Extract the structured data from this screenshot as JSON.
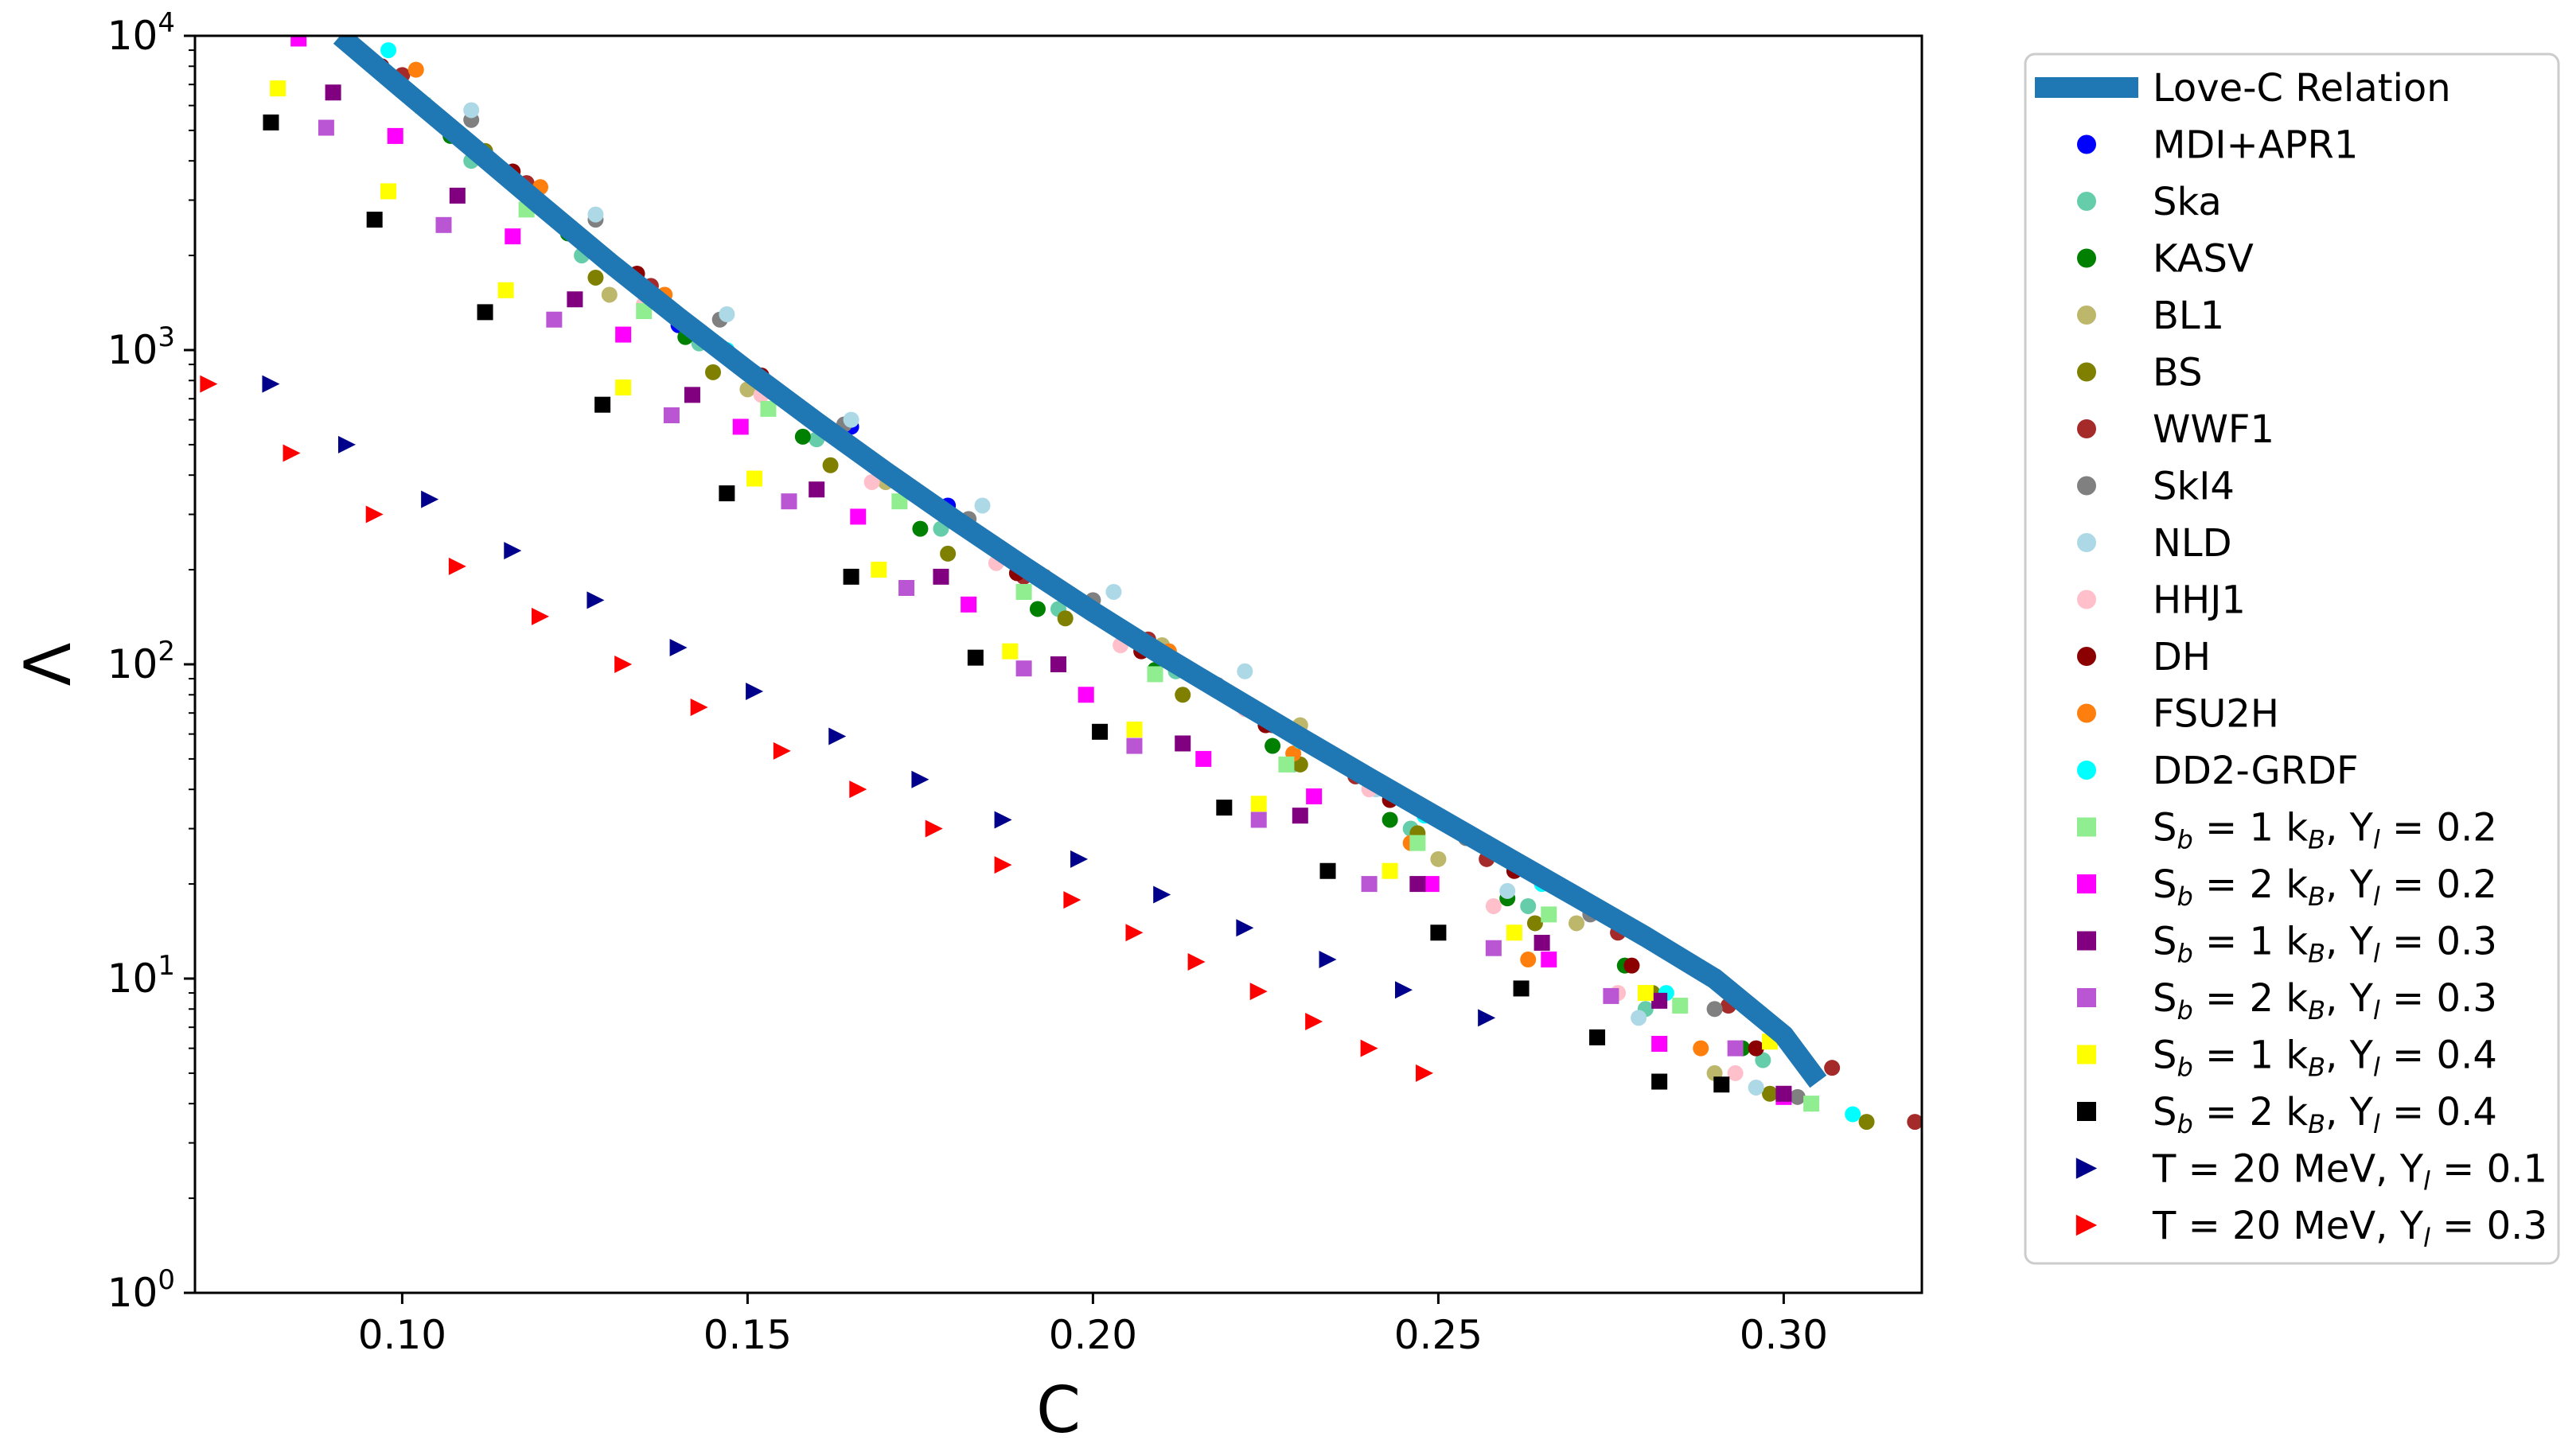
{
  "chart_data": {
    "type": "scatter",
    "xlabel": "C",
    "ylabel": "Λ",
    "xlim": [
      0.07,
      0.32
    ],
    "ylim": [
      1,
      10000
    ],
    "yscale": "log",
    "grid": false,
    "legend_position": "right (outside)",
    "x_ticks": [
      0.1,
      0.15,
      0.2,
      0.25,
      0.3
    ],
    "x_tick_labels": [
      "0.10",
      "0.15",
      "0.20",
      "0.25",
      "0.30"
    ],
    "y_ticks": [
      1,
      10,
      100,
      1000,
      10000
    ],
    "y_tick_labels": [
      {
        "base": "10",
        "exp": "0"
      },
      {
        "base": "10",
        "exp": "1"
      },
      {
        "base": "10",
        "exp": "2"
      },
      {
        "base": "10",
        "exp": "3"
      },
      {
        "base": "10",
        "exp": "4"
      }
    ],
    "line": {
      "name": "Love-C Relation",
      "color": "#1f77b4",
      "x": [
        0.091,
        0.1,
        0.11,
        0.12,
        0.13,
        0.14,
        0.15,
        0.16,
        0.17,
        0.18,
        0.19,
        0.2,
        0.21,
        0.22,
        0.23,
        0.24,
        0.25,
        0.26,
        0.27,
        0.28,
        0.29,
        0.3,
        0.305
      ],
      "y": [
        10000,
        6800,
        4450,
        2900,
        1900,
        1270,
        860,
        590,
        410,
        288,
        205,
        147,
        107,
        79,
        58.5,
        43.5,
        32.5,
        24.3,
        18.2,
        13.6,
        10.0,
        6.6,
        4.7
      ]
    },
    "series": [
      {
        "name": "MDI+APR1",
        "marker": "circle",
        "color": "#0000ff",
        "x": [
          0.14,
          0.165,
          0.179
        ],
        "y": [
          1200,
          570,
          320
        ]
      },
      {
        "name": "Ska",
        "marker": "circle",
        "color": "#66cdaa",
        "x": [
          0.11,
          0.126,
          0.143,
          0.16,
          0.178,
          0.195,
          0.212,
          0.229,
          0.246,
          0.263,
          0.28,
          0.297
        ],
        "y": [
          4000,
          2000,
          1050,
          520,
          270,
          150,
          95,
          48,
          30,
          17,
          8,
          5.5
        ]
      },
      {
        "name": "KASV",
        "marker": "circle",
        "color": "#008000",
        "x": [
          0.107,
          0.124,
          0.141,
          0.158,
          0.175,
          0.192,
          0.209,
          0.226,
          0.243,
          0.26,
          0.277,
          0.294
        ],
        "y": [
          4800,
          2350,
          1100,
          530,
          270,
          150,
          96,
          55,
          32,
          18,
          11,
          6
        ]
      },
      {
        "name": "BL1",
        "marker": "circle",
        "color": "#bdb76b",
        "x": [
          0.13,
          0.15,
          0.17,
          0.19,
          0.21,
          0.23,
          0.25,
          0.27,
          0.29
        ],
        "y": [
          1500,
          750,
          380,
          205,
          115,
          64,
          24,
          15,
          5
        ]
      },
      {
        "name": "BS",
        "marker": "circle",
        "color": "#808000",
        "x": [
          0.096,
          0.112,
          0.128,
          0.145,
          0.162,
          0.179,
          0.196,
          0.213,
          0.23,
          0.247,
          0.264,
          0.281,
          0.298,
          0.312
        ],
        "y": [
          8000,
          4300,
          1700,
          850,
          430,
          225,
          140,
          80,
          48,
          29,
          15,
          9,
          4.3,
          3.5
        ]
      },
      {
        "name": "WWF1",
        "marker": "circle",
        "color": "#a52a2a",
        "x": [
          0.1,
          0.118,
          0.136,
          0.153,
          0.172,
          0.19,
          0.208,
          0.226,
          0.238,
          0.257,
          0.276,
          0.292,
          0.307,
          0.319
        ],
        "y": [
          7500,
          3400,
          1600,
          740,
          380,
          190,
          120,
          64,
          44,
          24,
          14,
          8.2,
          5.2,
          3.5
        ]
      },
      {
        "name": "SkI4",
        "marker": "circle",
        "color": "#808080",
        "x": [
          0.11,
          0.128,
          0.146,
          0.164,
          0.182,
          0.2,
          0.218,
          0.236,
          0.254,
          0.272,
          0.29,
          0.302
        ],
        "y": [
          5400,
          2600,
          1250,
          580,
          290,
          160,
          86,
          50,
          28,
          16,
          8,
          4.2
        ]
      },
      {
        "name": "NLD",
        "marker": "circle",
        "color": "#add8e6",
        "x": [
          0.11,
          0.128,
          0.147,
          0.165,
          0.184,
          0.203,
          0.222,
          0.241,
          0.26,
          0.279,
          0.296
        ],
        "y": [
          5800,
          2700,
          1300,
          600,
          320,
          170,
          95,
          40,
          19,
          7.5,
          4.5
        ]
      },
      {
        "name": "HHJ1",
        "marker": "circle",
        "color": "#ffc0cb",
        "x": [
          0.135,
          0.152,
          0.168,
          0.186,
          0.204,
          0.222,
          0.24,
          0.258,
          0.276,
          0.293
        ],
        "y": [
          1400,
          720,
          380,
          210,
          115,
          72,
          40,
          17,
          9,
          5
        ]
      },
      {
        "name": "DH",
        "marker": "circle",
        "color": "#8b0000",
        "x": [
          0.097,
          0.116,
          0.134,
          0.152,
          0.171,
          0.189,
          0.207,
          0.225,
          0.243,
          0.261,
          0.278,
          0.296
        ],
        "y": [
          8000,
          3700,
          1750,
          830,
          390,
          195,
          110,
          64,
          37,
          22,
          11,
          6
        ]
      },
      {
        "name": "FSU2H",
        "marker": "circle",
        "color": "#ff7f0e",
        "x": [
          0.102,
          0.12,
          0.138,
          0.156,
          0.175,
          0.193,
          0.211,
          0.229,
          0.246,
          0.263,
          0.288
        ],
        "y": [
          7800,
          3300,
          1500,
          700,
          350,
          190,
          110,
          52,
          27,
          11.5,
          6
        ]
      },
      {
        "name": "DD2-GRDF",
        "marker": "circle",
        "color": "#00ffff",
        "x": [
          0.098,
          0.147,
          0.23,
          0.248,
          0.265,
          0.283,
          0.31
        ],
        "y": [
          9000,
          1000,
          57,
          33,
          20,
          9,
          3.7
        ]
      },
      {
        "name": "S_b = 1 k_B, Y_l = 0.2",
        "marker": "square",
        "color": "#90ee90",
        "x": [
          0.103,
          0.118,
          0.135,
          0.153,
          0.172,
          0.19,
          0.209,
          0.228,
          0.247,
          0.266,
          0.285,
          0.304
        ],
        "y": [
          6000,
          2800,
          1330,
          650,
          330,
          170,
          93,
          48,
          27,
          16,
          8.2,
          4
        ]
      },
      {
        "name": "S_b = 2 k_B, Y_l = 0.2",
        "marker": "square",
        "color": "#ff00ff",
        "x": [
          0.085,
          0.099,
          0.116,
          0.132,
          0.149,
          0.166,
          0.182,
          0.199,
          0.216,
          0.232,
          0.249,
          0.266,
          0.282,
          0.3
        ],
        "y": [
          9800,
          4800,
          2300,
          1120,
          570,
          295,
          155,
          80,
          50,
          38,
          20,
          11.5,
          6.2,
          4.2
        ]
      },
      {
        "name": "S_b = 1 k_B, Y_l = 0.3",
        "marker": "square",
        "color": "#800080",
        "x": [
          0.09,
          0.108,
          0.125,
          0.142,
          0.16,
          0.178,
          0.195,
          0.213,
          0.23,
          0.247,
          0.265,
          0.282,
          0.3
        ],
        "y": [
          6600,
          3100,
          1450,
          720,
          360,
          190,
          100,
          56,
          33,
          20,
          13,
          8.5,
          4.3
        ]
      },
      {
        "name": "S_b = 2 k_B, Y_l = 0.3",
        "marker": "square",
        "color": "#ba55d3",
        "x": [
          0.089,
          0.106,
          0.122,
          0.139,
          0.156,
          0.173,
          0.19,
          0.206,
          0.224,
          0.24,
          0.258,
          0.275,
          0.293
        ],
        "y": [
          5100,
          2500,
          1250,
          620,
          330,
          175,
          97,
          55,
          32,
          20,
          12.5,
          8.8,
          6
        ]
      },
      {
        "name": "S_b = 1 k_B, Y_l = 0.4",
        "marker": "square",
        "color": "#ffff00",
        "x": [
          0.082,
          0.098,
          0.115,
          0.132,
          0.151,
          0.169,
          0.188,
          0.206,
          0.224,
          0.243,
          0.261,
          0.28,
          0.298
        ],
        "y": [
          6800,
          3200,
          1550,
          760,
          390,
          200,
          110,
          62,
          36,
          22,
          14,
          9,
          6.3
        ]
      },
      {
        "name": "S_b = 2 k_B, Y_l = 0.4",
        "marker": "square",
        "color": "#000000",
        "x": [
          0.081,
          0.096,
          0.112,
          0.129,
          0.147,
          0.165,
          0.183,
          0.201,
          0.219,
          0.234,
          0.25,
          0.262,
          0.273,
          0.282,
          0.291
        ],
        "y": [
          5300,
          2600,
          1320,
          670,
          350,
          190,
          105,
          61,
          35,
          22,
          14,
          9.3,
          6.5,
          4.7,
          4.6
        ]
      },
      {
        "name": "T = 20 MeV, Y_l = 0.1",
        "marker": "triangle-right",
        "color": "#00008b",
        "x": [
          0.081,
          0.092,
          0.104,
          0.116,
          0.128,
          0.14,
          0.151,
          0.163,
          0.175,
          0.187,
          0.198,
          0.21,
          0.222,
          0.234,
          0.245,
          0.257
        ],
        "y": [
          780,
          500,
          335,
          230,
          160,
          113,
          82,
          59,
          43,
          32,
          24,
          18.5,
          14.5,
          11.5,
          9.2,
          7.5
        ]
      },
      {
        "name": "T = 20 MeV, Y_l = 0.3",
        "marker": "triangle-right",
        "color": "#ff0000",
        "x": [
          0.072,
          0.084,
          0.096,
          0.108,
          0.12,
          0.132,
          0.143,
          0.155,
          0.166,
          0.177,
          0.187,
          0.197,
          0.206,
          0.215,
          0.224,
          0.232,
          0.24,
          0.248
        ],
        "y": [
          780,
          470,
          300,
          205,
          142,
          100,
          73,
          53,
          40,
          30,
          23,
          17.8,
          14,
          11.3,
          9.1,
          7.3,
          6,
          5
        ]
      }
    ],
    "legend": [
      {
        "kind": "line",
        "color": "#1f77b4",
        "text": "Love-C Relation"
      },
      {
        "kind": "circle",
        "color": "#0000ff",
        "text": "MDI+APR1"
      },
      {
        "kind": "circle",
        "color": "#66cdaa",
        "text": "Ska"
      },
      {
        "kind": "circle",
        "color": "#008000",
        "text": "KASV"
      },
      {
        "kind": "circle",
        "color": "#bdb76b",
        "text": "BL1"
      },
      {
        "kind": "circle",
        "color": "#808000",
        "text": "BS"
      },
      {
        "kind": "circle",
        "color": "#a52a2a",
        "text": "WWF1"
      },
      {
        "kind": "circle",
        "color": "#808080",
        "text": "SkI4"
      },
      {
        "kind": "circle",
        "color": "#add8e6",
        "text": "NLD"
      },
      {
        "kind": "circle",
        "color": "#ffc0cb",
        "text": "HHJ1"
      },
      {
        "kind": "circle",
        "color": "#8b0000",
        "text": "DH"
      },
      {
        "kind": "circle",
        "color": "#ff7f0e",
        "text": "FSU2H"
      },
      {
        "kind": "circle",
        "color": "#00ffff",
        "text": "DD2-GRDF"
      },
      {
        "kind": "square",
        "color": "#90ee90",
        "parts": [
          "S",
          "b",
          " = 1 k",
          "B",
          ", Y",
          "l",
          " = 0.2"
        ]
      },
      {
        "kind": "square",
        "color": "#ff00ff",
        "parts": [
          "S",
          "b",
          " = 2 k",
          "B",
          ", Y",
          "l",
          " = 0.2"
        ]
      },
      {
        "kind": "square",
        "color": "#800080",
        "parts": [
          "S",
          "b",
          " = 1 k",
          "B",
          ", Y",
          "l",
          " = 0.3"
        ]
      },
      {
        "kind": "square",
        "color": "#ba55d3",
        "parts": [
          "S",
          "b",
          " = 2 k",
          "B",
          ", Y",
          "l",
          " = 0.3"
        ]
      },
      {
        "kind": "square",
        "color": "#ffff00",
        "parts": [
          "S",
          "b",
          " = 1 k",
          "B",
          ", Y",
          "l",
          " = 0.4"
        ]
      },
      {
        "kind": "square",
        "color": "#000000",
        "parts": [
          "S",
          "b",
          " = 2 k",
          "B",
          ", Y",
          "l",
          " = 0.4"
        ]
      },
      {
        "kind": "triangle-right",
        "color": "#00008b",
        "parts": [
          "T = 20 MeV, Y",
          "l",
          " = 0.1"
        ]
      },
      {
        "kind": "triangle-right",
        "color": "#ff0000",
        "parts": [
          "T = 20 MeV, Y",
          "l",
          " = 0.3"
        ]
      }
    ]
  }
}
